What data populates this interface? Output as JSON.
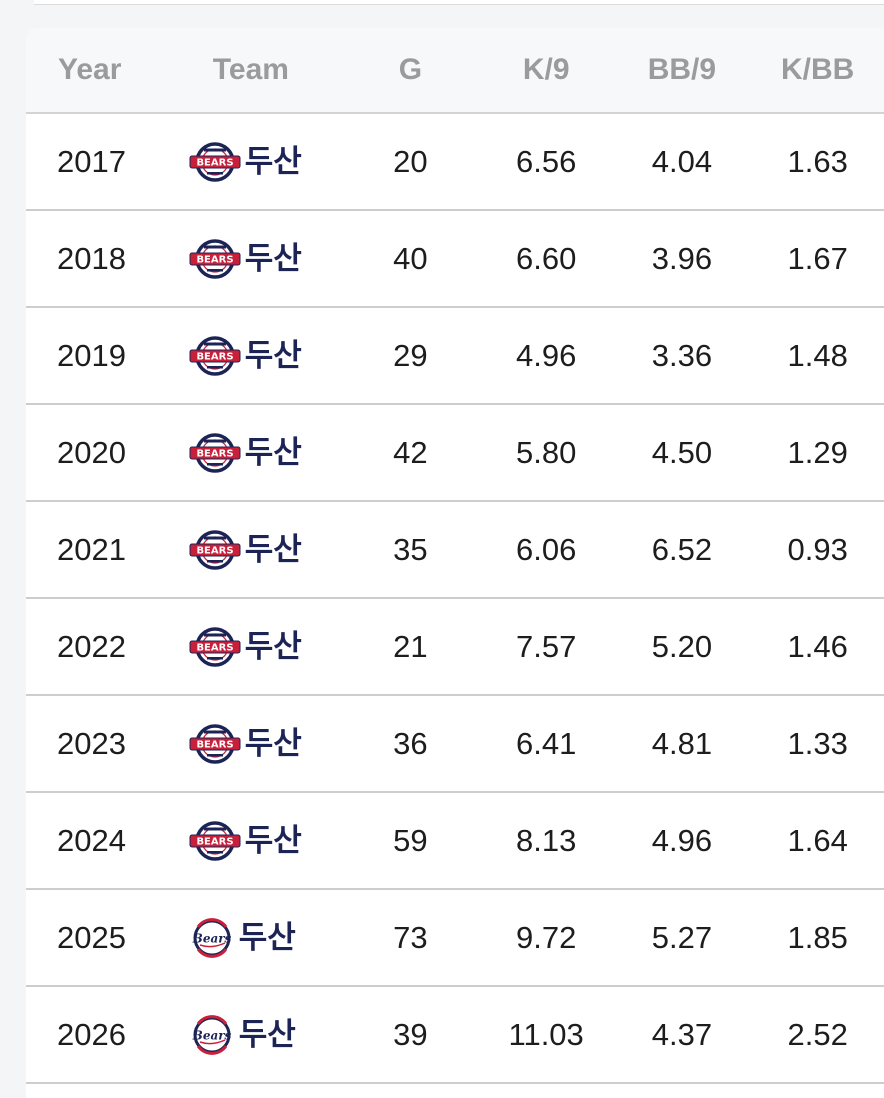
{
  "table": {
    "headers": {
      "year": "Year",
      "team": "Team",
      "g": "G",
      "k9": "K/9",
      "bb9": "BB/9",
      "kbb": "K/BB"
    },
    "rows": [
      {
        "year": "2017",
        "team": "두산",
        "logo": "doosan-bears-old-logo",
        "g": "20",
        "k9": "6.56",
        "bb9": "4.04",
        "kbb": "1.63"
      },
      {
        "year": "2018",
        "team": "두산",
        "logo": "doosan-bears-old-logo",
        "g": "40",
        "k9": "6.60",
        "bb9": "3.96",
        "kbb": "1.67"
      },
      {
        "year": "2019",
        "team": "두산",
        "logo": "doosan-bears-old-logo",
        "g": "29",
        "k9": "4.96",
        "bb9": "3.36",
        "kbb": "1.48"
      },
      {
        "year": "2020",
        "team": "두산",
        "logo": "doosan-bears-old-logo",
        "g": "42",
        "k9": "5.80",
        "bb9": "4.50",
        "kbb": "1.29"
      },
      {
        "year": "2021",
        "team": "두산",
        "logo": "doosan-bears-old-logo",
        "g": "35",
        "k9": "6.06",
        "bb9": "6.52",
        "kbb": "0.93"
      },
      {
        "year": "2022",
        "team": "두산",
        "logo": "doosan-bears-old-logo",
        "g": "21",
        "k9": "7.57",
        "bb9": "5.20",
        "kbb": "1.46"
      },
      {
        "year": "2023",
        "team": "두산",
        "logo": "doosan-bears-old-logo",
        "g": "36",
        "k9": "6.41",
        "bb9": "4.81",
        "kbb": "1.33"
      },
      {
        "year": "2024",
        "team": "두산",
        "logo": "doosan-bears-old-logo",
        "g": "59",
        "k9": "8.13",
        "bb9": "4.96",
        "kbb": "1.64"
      },
      {
        "year": "2025",
        "team": "두산",
        "logo": "doosan-bears-new-logo",
        "g": "73",
        "k9": "9.72",
        "bb9": "5.27",
        "kbb": "1.85"
      },
      {
        "year": "2026",
        "team": "두산",
        "logo": "doosan-bears-new-logo",
        "g": "39",
        "k9": "11.03",
        "bb9": "4.37",
        "kbb": "2.52"
      }
    ]
  },
  "colors": {
    "header_text": "#9b9b9b",
    "team_text": "#1c2456",
    "logo_navy": "#1c2456",
    "logo_red": "#c8203a"
  }
}
